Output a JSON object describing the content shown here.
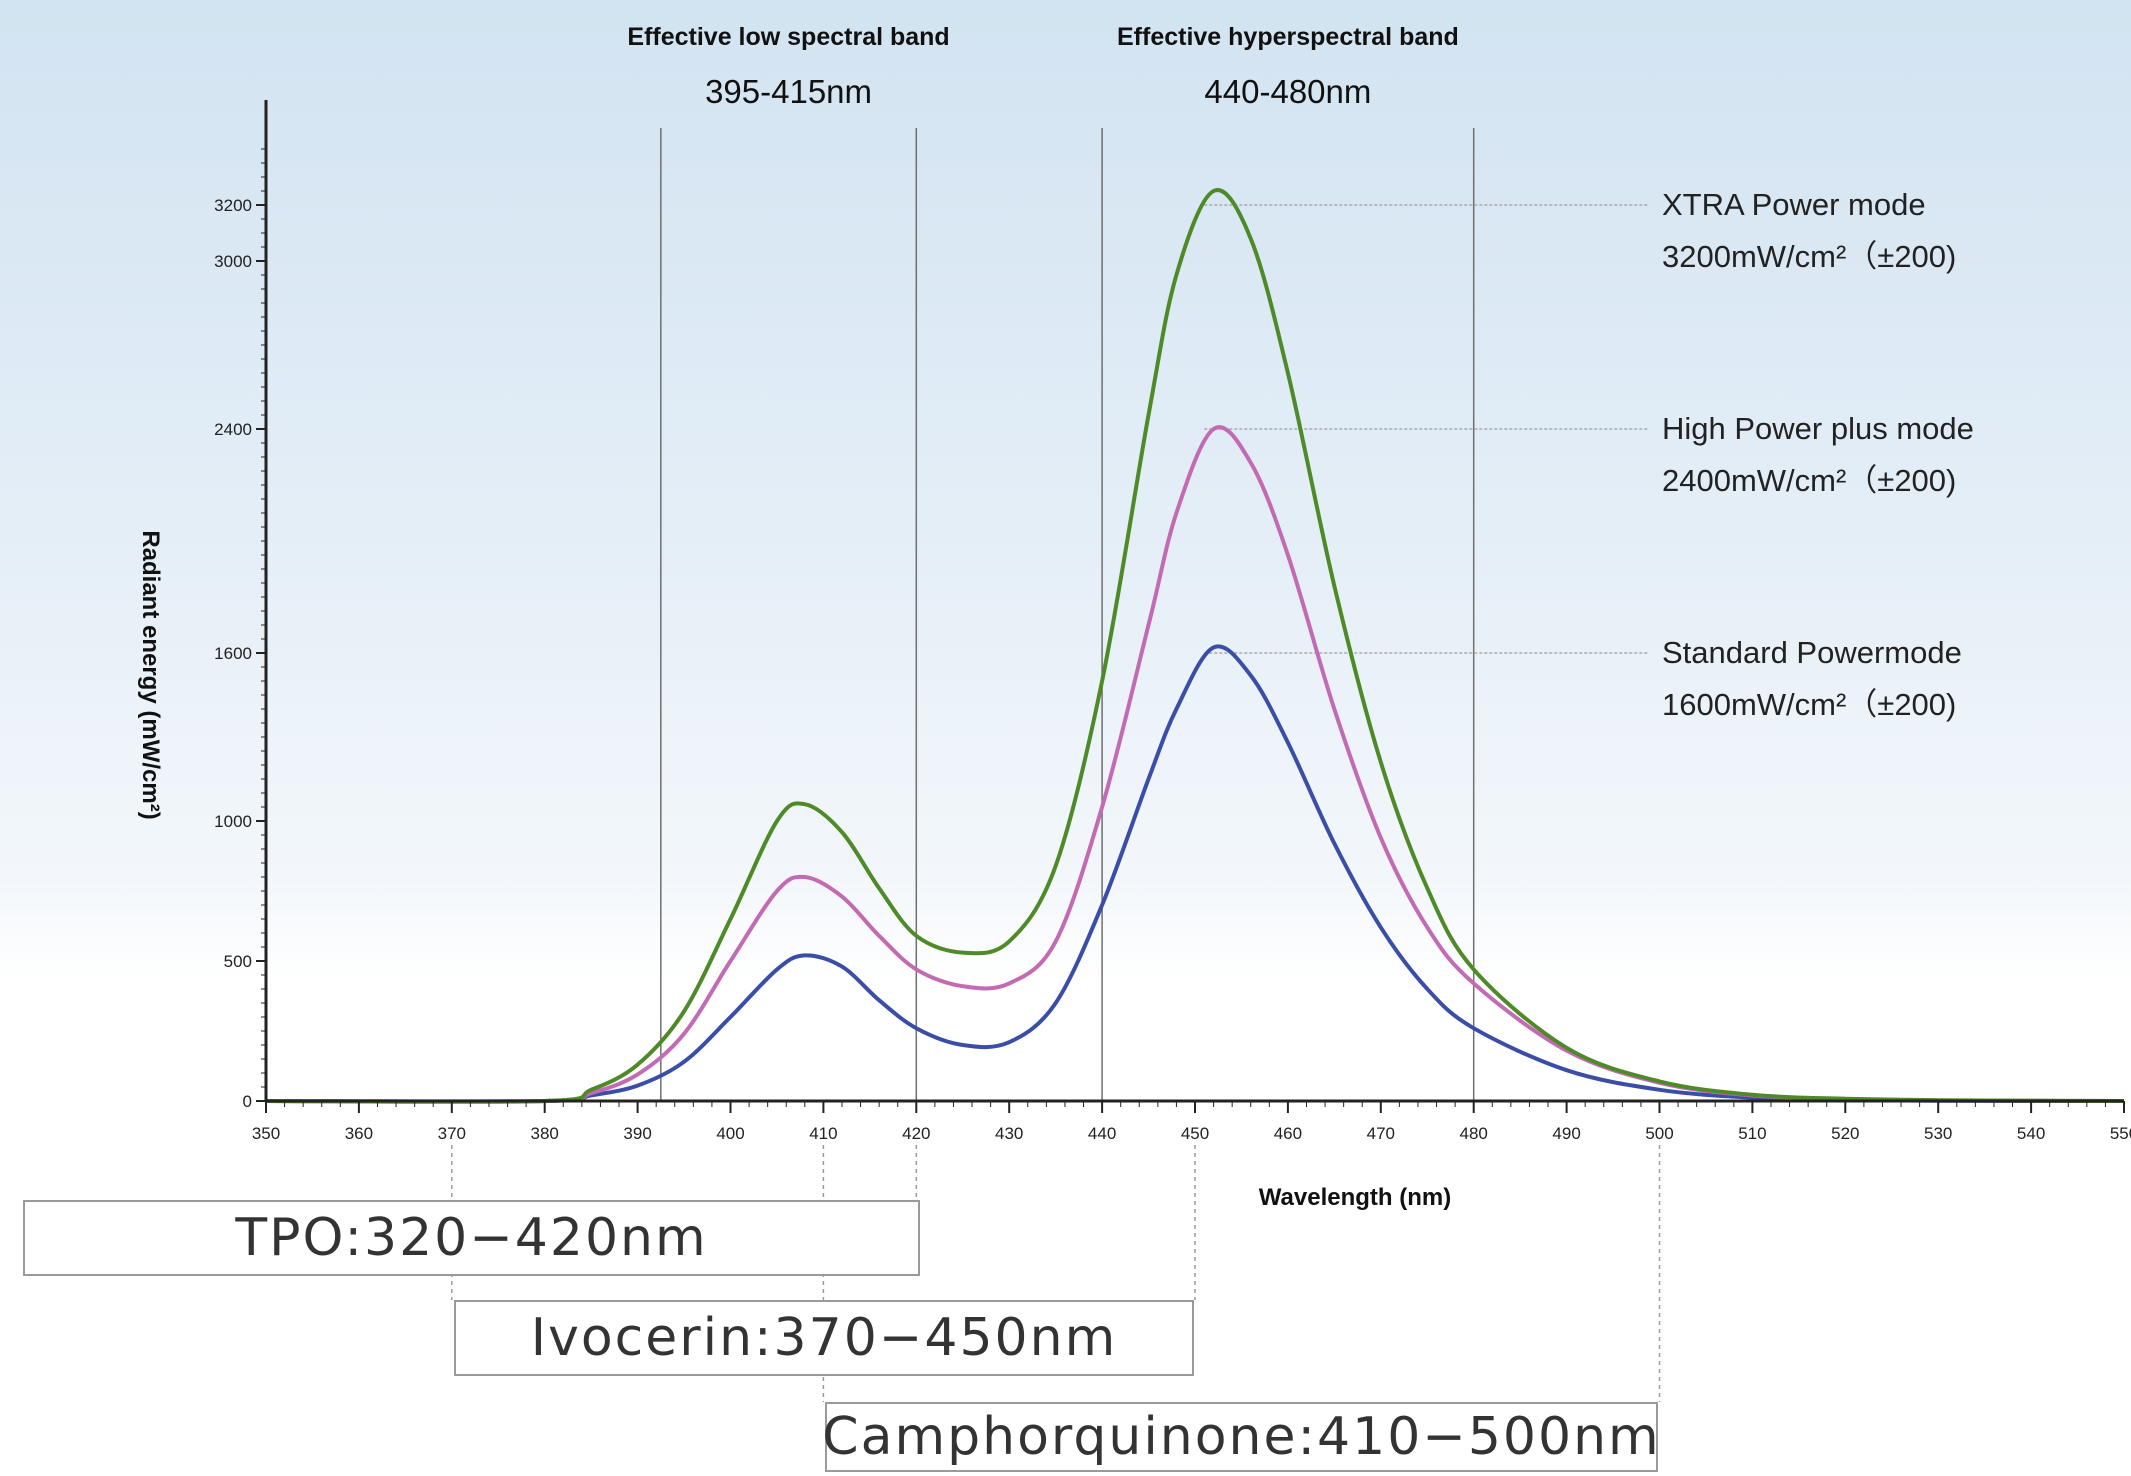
{
  "chart_data": {
    "type": "line",
    "xlabel": "Wavelength (nm)",
    "ylabel": "Radiant energy (mW/cm²)",
    "xlim": [
      350,
      550
    ],
    "ylim": [
      0,
      3400
    ],
    "x_ticks": [
      350,
      360,
      370,
      380,
      390,
      400,
      410,
      420,
      430,
      440,
      450,
      460,
      470,
      480,
      490,
      500,
      510,
      520,
      530,
      540,
      550
    ],
    "y_ticks": [
      0,
      500,
      1000,
      1600,
      2400,
      3000,
      3200
    ],
    "x": [
      350,
      380,
      385,
      390,
      395,
      400,
      405,
      408,
      412,
      416,
      420,
      425,
      430,
      435,
      440,
      445,
      448,
      452,
      456,
      460,
      465,
      470,
      475,
      480,
      490,
      500,
      510,
      520,
      530,
      540,
      550
    ],
    "series": [
      {
        "name": "XTRA Power mode",
        "color": "#4e8a28",
        "values": [
          0,
          0,
          40,
          130,
          320,
          650,
          1000,
          1060,
          960,
          760,
          590,
          530,
          570,
          840,
          1500,
          2450,
          2950,
          3250,
          3080,
          2600,
          1840,
          1210,
          760,
          470,
          190,
          70,
          22,
          8,
          3,
          1,
          0
        ]
      },
      {
        "name": "High Power plus mode",
        "color": "#c36ab4",
        "values": [
          0,
          0,
          28,
          95,
          240,
          500,
          750,
          800,
          730,
          590,
          470,
          410,
          420,
          570,
          1050,
          1700,
          2100,
          2400,
          2280,
          1950,
          1400,
          940,
          620,
          420,
          180,
          65,
          20,
          7,
          2,
          1,
          0
        ]
      },
      {
        "name": "Standard Powermode",
        "color": "#3a4ea8",
        "values": [
          0,
          0,
          20,
          55,
          140,
          300,
          470,
          520,
          480,
          360,
          260,
          200,
          210,
          350,
          700,
          1150,
          1400,
          1620,
          1520,
          1280,
          920,
          620,
          400,
          260,
          110,
          40,
          12,
          4,
          1,
          0,
          0
        ]
      }
    ],
    "bands": [
      {
        "title": "Effective low spectral band",
        "range": "395-415nm",
        "x": [
          392.5,
          420
        ]
      },
      {
        "title": "Effective hyperspectral band",
        "range": "440-480nm",
        "x": [
          440,
          480
        ]
      }
    ],
    "annotations": [
      {
        "line1": "XTRA Power mode",
        "line2": "3200mW/cm²（±200)",
        "peak_x": 451,
        "peak_y": 3200
      },
      {
        "line1": "High Power plus mode",
        "line2": "2400mW/cm²（±200)",
        "peak_x": 451,
        "peak_y": 2400
      },
      {
        "line1": "Standard Powermode",
        "line2": "1600mW/cm²（±200)",
        "peak_x": 451,
        "peak_y": 1600
      }
    ],
    "photoinitiators": [
      {
        "label": "TPO:320−420nm",
        "start": 320,
        "end": 420
      },
      {
        "label": "Ivocerin:370−450nm",
        "start": 370,
        "end": 450
      },
      {
        "label": "Camphorquinone:410−500nm",
        "start": 410,
        "end": 500
      }
    ]
  }
}
